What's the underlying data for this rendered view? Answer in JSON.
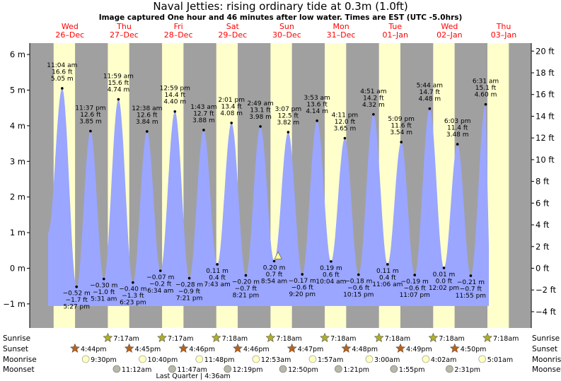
{
  "header": {
    "title": "Naval Jetties: rising  ordinary tide at 0.3m (1.0ft)",
    "subtitle": "Image captured One hour and 46 minutes after low water. Times are EST (UTC -5.0hrs)"
  },
  "colors": {
    "day": "#ffffcc",
    "night": "#a0a0a0",
    "water": "#9aa6ff",
    "day_label": "#ff0000",
    "sunrise_star": "#b0b020",
    "sunset_star": "#c06010",
    "moonrise": "#ffffc0",
    "moonset": "#b8b8a8"
  },
  "chart_data": {
    "type": "area",
    "title": "Naval Jetties: rising  ordinary tide at 0.3m (1.0ft)",
    "ylim_m": [
      -1.3,
      6.3
    ],
    "ylim_ft": [
      -4.3,
      20.7
    ],
    "y_ticks_m": [
      "6 m",
      "5 m",
      "4 m",
      "3 m",
      "2 m",
      "1 m",
      "0 m",
      "−1 m"
    ],
    "y_ticks_ft": [
      "20 ft",
      "18 ft",
      "16 ft",
      "14 ft",
      "12 ft",
      "10 ft",
      "8 ft",
      "6 ft",
      "4 ft",
      "2 ft",
      "0 ft",
      "−2 ft",
      "−4 ft"
    ],
    "days": [
      {
        "dow": "Wed",
        "date": "26–Dec"
      },
      {
        "dow": "Thu",
        "date": "27–Dec"
      },
      {
        "dow": "Fri",
        "date": "28–Dec"
      },
      {
        "dow": "Sat",
        "date": "29–Dec"
      },
      {
        "dow": "Sun",
        "date": "30–Dec"
      },
      {
        "dow": "Mon",
        "date": "31–Dec"
      },
      {
        "dow": "Tue",
        "date": "01–Jan"
      },
      {
        "dow": "Wed",
        "date": "02–Jan"
      },
      {
        "dow": "Thu",
        "date": "03–Jan"
      }
    ],
    "extremes": [
      {
        "day": 0,
        "time": "11:04 am",
        "ft": "16.6 ft",
        "m": 5.05,
        "label": "5.05 m",
        "type": "high"
      },
      {
        "day": 0,
        "time": "5:27 pm",
        "ft": "−1.7 ft",
        "m": -0.52,
        "label": "−0.52 m",
        "type": "low"
      },
      {
        "day": 0,
        "time": "11:37 pm",
        "ft": "12.6 ft",
        "m": 3.85,
        "label": "3.85 m",
        "type": "high"
      },
      {
        "day": 1,
        "time": "5:31 am",
        "ft": "−1.0 ft",
        "m": -0.3,
        "label": "−0.30 m",
        "type": "low"
      },
      {
        "day": 1,
        "time": "11:59 am",
        "ft": "15.6 ft",
        "m": 4.74,
        "label": "4.74 m",
        "type": "high"
      },
      {
        "day": 1,
        "time": "6:23 pm",
        "ft": "−1.3 ft",
        "m": -0.4,
        "label": "−0.40 m",
        "type": "low"
      },
      {
        "day": 2,
        "time": "12:38 am",
        "ft": "12.6 ft",
        "m": 3.84,
        "label": "3.84 m",
        "type": "high"
      },
      {
        "day": 2,
        "time": "6:34 am",
        "ft": "−0.2 ft",
        "m": -0.07,
        "label": "−0.07 m",
        "type": "low"
      },
      {
        "day": 2,
        "time": "12:59 pm",
        "ft": "14.4 ft",
        "m": 4.4,
        "label": "4.40 m",
        "type": "high"
      },
      {
        "day": 2,
        "time": "7:21 pm",
        "ft": "−0.9 ft",
        "m": -0.28,
        "label": "−0.28 m",
        "type": "low"
      },
      {
        "day": 3,
        "time": "1:43 am",
        "ft": "12.7 ft",
        "m": 3.88,
        "label": "3.88 m",
        "type": "high"
      },
      {
        "day": 3,
        "time": "7:43 am",
        "ft": "0.4 ft",
        "m": 0.11,
        "label": "0.11 m",
        "type": "low"
      },
      {
        "day": 3,
        "time": "2:01 pm",
        "ft": "13.4 ft",
        "m": 4.08,
        "label": "4.08 m",
        "type": "high"
      },
      {
        "day": 3,
        "time": "8:21 pm",
        "ft": "−0.7 ft",
        "m": -0.2,
        "label": "−0.20 m",
        "type": "low"
      },
      {
        "day": 4,
        "time": "2:49 am",
        "ft": "13.1 ft",
        "m": 3.98,
        "label": "3.98 m",
        "type": "high"
      },
      {
        "day": 4,
        "time": "8:54 am",
        "ft": "0.7 ft",
        "m": 0.2,
        "label": "0.20 m",
        "type": "low"
      },
      {
        "day": 4,
        "time": "3:07 pm",
        "ft": "12.5 ft",
        "m": 3.82,
        "label": "3.82 m",
        "type": "high"
      },
      {
        "day": 4,
        "time": "9:20 pm",
        "ft": "−0.6 ft",
        "m": -0.17,
        "label": "−0.17 m",
        "type": "low"
      },
      {
        "day": 5,
        "time": "3:53 am",
        "ft": "13.6 ft",
        "m": 4.14,
        "label": "4.14 m",
        "type": "high"
      },
      {
        "day": 5,
        "time": "10:04 am",
        "ft": "0.6 ft",
        "m": 0.19,
        "label": "0.19 m",
        "type": "low"
      },
      {
        "day": 5,
        "time": "4:11 pm",
        "ft": "12.0 ft",
        "m": 3.65,
        "label": "3.65 m",
        "type": "high"
      },
      {
        "day": 5,
        "time": "10:15 pm",
        "ft": "−0.6 ft",
        "m": -0.18,
        "label": "−0.18 m",
        "type": "low"
      },
      {
        "day": 6,
        "time": "4:51 am",
        "ft": "14.2 ft",
        "m": 4.32,
        "label": "4.32 m",
        "type": "high"
      },
      {
        "day": 6,
        "time": "11:06 am",
        "ft": "0.4 ft",
        "m": 0.11,
        "label": "0.11 m",
        "type": "low"
      },
      {
        "day": 6,
        "time": "5:09 pm",
        "ft": "11.6 ft",
        "m": 3.54,
        "label": "3.54 m",
        "type": "high"
      },
      {
        "day": 6,
        "time": "11:07 pm",
        "ft": "−0.6 ft",
        "m": -0.19,
        "label": "−0.19 m",
        "type": "low"
      },
      {
        "day": 7,
        "time": "5:44 am",
        "ft": "14.7 ft",
        "m": 4.48,
        "label": "4.48 m",
        "type": "high"
      },
      {
        "day": 7,
        "time": "12:02 pm",
        "ft": "0.0 ft",
        "m": 0.01,
        "label": "0.01 m",
        "type": "low"
      },
      {
        "day": 7,
        "time": "6:03 pm",
        "ft": "11.4 ft",
        "m": 3.48,
        "label": "3.48 m",
        "type": "high"
      },
      {
        "day": 7,
        "time": "11:55 pm",
        "ft": "−0.7 ft",
        "m": -0.21,
        "label": "−0.21 m",
        "type": "low"
      },
      {
        "day": 8,
        "time": "6:31 am",
        "ft": "15.1 ft",
        "m": 4.6,
        "label": "4.60 m",
        "type": "high"
      }
    ],
    "current": {
      "m": 0.3,
      "ft": 1.0,
      "status": "rising"
    }
  },
  "astro": {
    "row_labels": [
      "Sunrise",
      "Sunset",
      "Moonrise",
      "Moonset"
    ],
    "sunrise": [
      "7:17am",
      "7:17am",
      "7:18am",
      "7:18am",
      "7:18am",
      "7:18am",
      "7:18am",
      "7:18am"
    ],
    "sunset": [
      "4:44pm",
      "4:45pm",
      "4:46pm",
      "4:46pm",
      "4:47pm",
      "4:48pm",
      "4:49pm",
      "4:50pm"
    ],
    "moonrise": [
      "9:30pm",
      "10:40pm",
      "11:48pm",
      "12:53am",
      "1:57am",
      "3:00am",
      "4:02am",
      "5:01am"
    ],
    "moonset": [
      "11:12am",
      "11:47am",
      "12:19pm",
      "12:50pm",
      "1:21pm",
      "1:55pm",
      "2:31pm"
    ],
    "phase_note": "Last Quarter | 4:36am"
  }
}
